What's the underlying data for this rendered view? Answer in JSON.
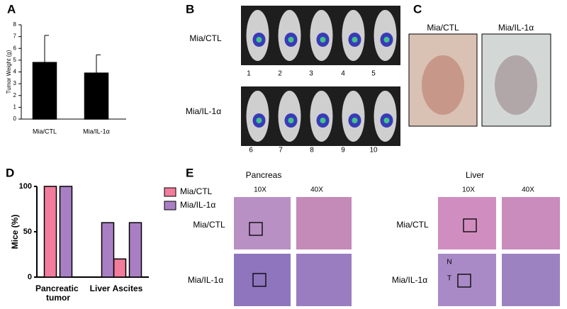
{
  "panel_labels": [
    "A",
    "B",
    "C",
    "D",
    "E"
  ],
  "chart_data": [
    {
      "type": "bar",
      "ylabel": "Tumor Weight (g)",
      "categories": [
        "Mia/CTL",
        "Mia/IL-1α"
      ],
      "values": [
        4.8,
        3.9
      ],
      "errors": [
        2.3,
        1.55
      ],
      "color": "#000000",
      "ylim": [
        0,
        8
      ],
      "yticks": [
        0,
        1,
        2,
        3,
        4,
        5,
        6,
        7,
        8
      ]
    },
    {
      "type": "bar",
      "ylabel": "Mice (%)",
      "categories": [
        "Pancreatic tumor",
        "Liver",
        "Ascites"
      ],
      "series": [
        {
          "name": "Mia/CTL",
          "color": "#f27c9b",
          "values": [
            100,
            0,
            20
          ]
        },
        {
          "name": "Mia/IL-1α",
          "color": "#a97fc4",
          "values": [
            100,
            60,
            60
          ]
        }
      ],
      "ylim": [
        0,
        100
      ],
      "yticks": [
        0,
        50,
        100
      ],
      "legend": "upper right"
    }
  ],
  "panel_b": {
    "rows": [
      "Mia/CTL",
      "Mia/IL-1α"
    ],
    "numbers": [
      [
        1,
        2,
        3,
        4,
        5
      ],
      [
        6,
        7,
        8,
        9,
        10
      ]
    ]
  },
  "panel_c": {
    "columns": [
      "Mia/CTL",
      "Mia/IL-1α"
    ]
  },
  "panel_e": {
    "groups": [
      {
        "title": "Pancreas",
        "columns": [
          "10X",
          "40X"
        ]
      },
      {
        "title": "Liver",
        "columns": [
          "10X",
          "40X"
        ],
        "markers": [
          "N",
          "T"
        ]
      }
    ],
    "rows": [
      "Mia/CTL",
      "Mia/IL-1α"
    ]
  }
}
